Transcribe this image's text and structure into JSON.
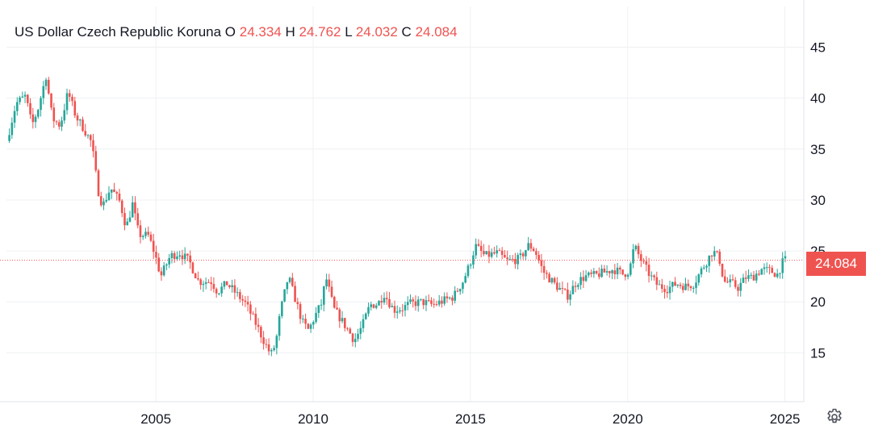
{
  "legend": {
    "symbol": "US Dollar Czech Republic Koruna",
    "o_label": "O",
    "o_value": "24.334",
    "h_label": "H",
    "h_value": "24.762",
    "l_label": "L",
    "l_value": "24.032",
    "c_label": "C",
    "c_value": "24.084"
  },
  "last_price_label": "24.084",
  "colors": {
    "up": "#26a69a",
    "down": "#ef5350",
    "grid": "#eef0f3",
    "text": "#131722"
  },
  "icons": {
    "settings": "gear-icon"
  },
  "chart_data": {
    "type": "candlestick",
    "title": "US Dollar Czech Republic Koruna",
    "xlabel": "",
    "ylabel": "",
    "x_ticks": [
      "2005",
      "2010",
      "2015",
      "2020",
      "2025"
    ],
    "y_ticks": [
      15,
      20,
      25,
      30,
      35,
      40,
      45
    ],
    "xlim": [
      2000.25,
      2025.6
    ],
    "ylim": [
      10.2,
      49.0
    ],
    "grid": true,
    "last_price": 24.084,
    "anchors": [
      [
        2000.3,
        35.8
      ],
      [
        2000.6,
        39.5
      ],
      [
        2000.9,
        40.2
      ],
      [
        2001.1,
        37.3
      ],
      [
        2001.3,
        39.0
      ],
      [
        2001.55,
        42.2
      ],
      [
        2001.75,
        38.0
      ],
      [
        2002.0,
        37.3
      ],
      [
        2002.25,
        40.6
      ],
      [
        2002.5,
        38.2
      ],
      [
        2002.75,
        37.0
      ],
      [
        2003.0,
        35.6
      ],
      [
        2003.2,
        31.0
      ],
      [
        2003.35,
        29.4
      ],
      [
        2003.6,
        31.2
      ],
      [
        2003.9,
        29.8
      ],
      [
        2004.1,
        27.3
      ],
      [
        2004.3,
        29.6
      ],
      [
        2004.5,
        26.6
      ],
      [
        2004.8,
        26.5
      ],
      [
        2005.0,
        24.8
      ],
      [
        2005.2,
        22.5
      ],
      [
        2005.5,
        24.5
      ],
      [
        2005.8,
        24.8
      ],
      [
        2006.1,
        24.0
      ],
      [
        2006.4,
        22.0
      ],
      [
        2006.8,
        22.0
      ],
      [
        2007.0,
        21.0
      ],
      [
        2007.3,
        21.8
      ],
      [
        2007.6,
        20.8
      ],
      [
        2007.9,
        19.8
      ],
      [
        2008.2,
        18.0
      ],
      [
        2008.5,
        16.0
      ],
      [
        2008.7,
        14.8
      ],
      [
        2008.85,
        15.9
      ],
      [
        2009.0,
        19.0
      ],
      [
        2009.25,
        22.5
      ],
      [
        2009.4,
        21.0
      ],
      [
        2009.7,
        18.0
      ],
      [
        2009.9,
        17.2
      ],
      [
        2010.1,
        18.6
      ],
      [
        2010.3,
        19.8
      ],
      [
        2010.45,
        22.4
      ],
      [
        2010.7,
        19.3
      ],
      [
        2010.9,
        18.4
      ],
      [
        2011.2,
        17.0
      ],
      [
        2011.35,
        16.2
      ],
      [
        2011.6,
        17.6
      ],
      [
        2011.85,
        19.7
      ],
      [
        2012.1,
        19.8
      ],
      [
        2012.3,
        20.8
      ],
      [
        2012.6,
        19.2
      ],
      [
        2012.9,
        19.4
      ],
      [
        2013.1,
        19.8
      ],
      [
        2013.5,
        20.0
      ],
      [
        2013.85,
        19.7
      ],
      [
        2014.1,
        20.0
      ],
      [
        2014.5,
        20.5
      ],
      [
        2014.8,
        22.0
      ],
      [
        2015.0,
        23.5
      ],
      [
        2015.2,
        25.5
      ],
      [
        2015.5,
        24.5
      ],
      [
        2015.9,
        24.8
      ],
      [
        2016.2,
        24.0
      ],
      [
        2016.6,
        24.2
      ],
      [
        2016.9,
        25.6
      ],
      [
        2017.1,
        25.0
      ],
      [
        2017.35,
        23.0
      ],
      [
        2017.7,
        21.8
      ],
      [
        2018.0,
        20.9
      ],
      [
        2018.15,
        20.6
      ],
      [
        2018.4,
        21.9
      ],
      [
        2018.7,
        22.5
      ],
      [
        2019.0,
        22.6
      ],
      [
        2019.3,
        22.9
      ],
      [
        2019.6,
        23.2
      ],
      [
        2019.9,
        22.7
      ],
      [
        2020.1,
        23.1
      ],
      [
        2020.25,
        25.5
      ],
      [
        2020.45,
        24.2
      ],
      [
        2020.75,
        22.6
      ],
      [
        2021.0,
        21.6
      ],
      [
        2021.3,
        21.3
      ],
      [
        2021.6,
        21.8
      ],
      [
        2021.9,
        21.5
      ],
      [
        2022.15,
        21.8
      ],
      [
        2022.4,
        23.2
      ],
      [
        2022.75,
        25.0
      ],
      [
        2022.95,
        24.3
      ],
      [
        2023.1,
        22.0
      ],
      [
        2023.35,
        21.8
      ],
      [
        2023.55,
        21.4
      ],
      [
        2023.8,
        22.4
      ],
      [
        2024.0,
        22.4
      ],
      [
        2024.3,
        23.2
      ],
      [
        2024.6,
        23.0
      ],
      [
        2024.8,
        22.7
      ],
      [
        2025.0,
        24.084
      ]
    ]
  }
}
